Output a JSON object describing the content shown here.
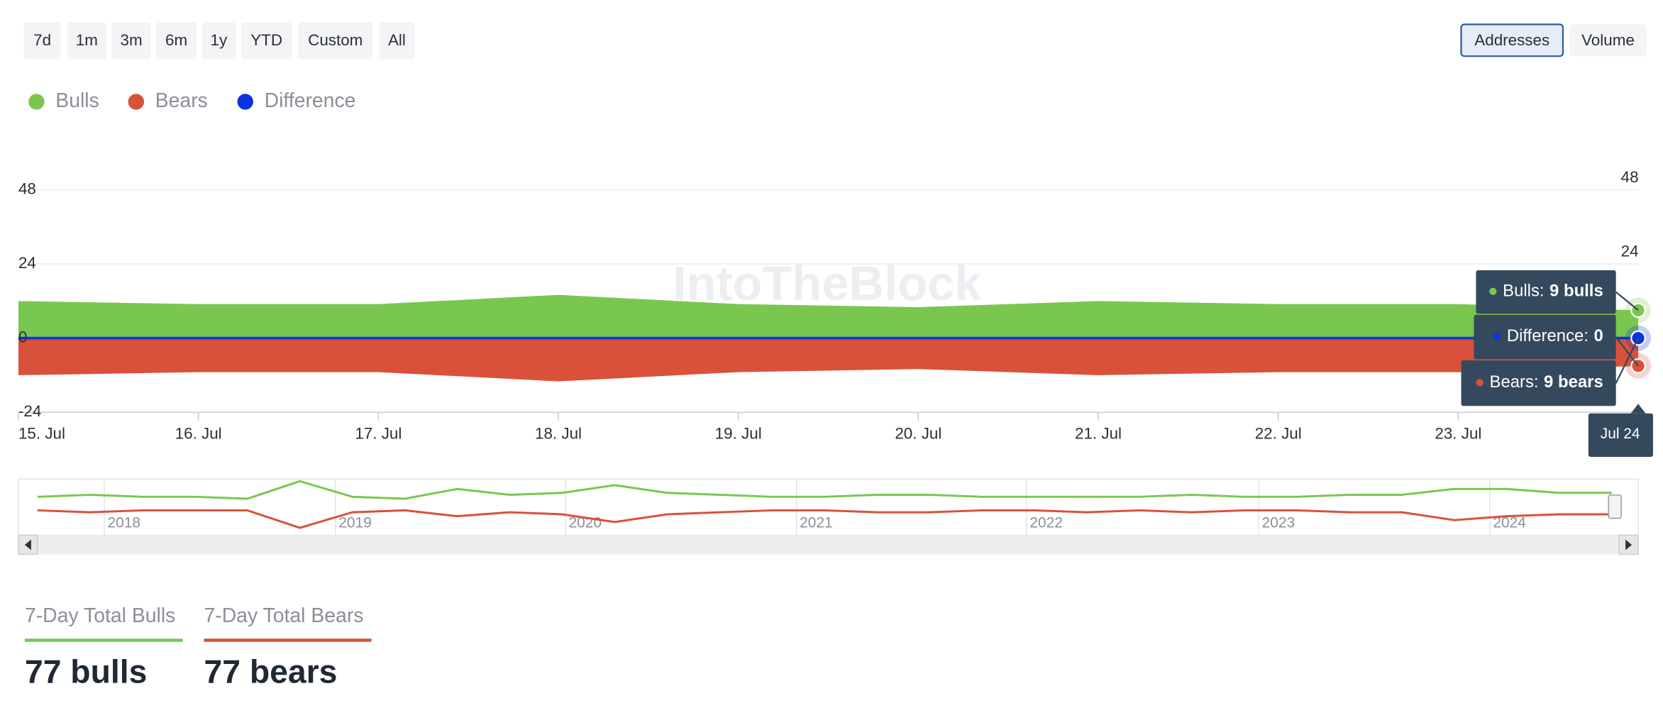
{
  "range_buttons": [
    "7d",
    "1m",
    "3m",
    "6m",
    "1y",
    "YTD",
    "Custom",
    "All"
  ],
  "view_buttons": [
    "Addresses",
    "Volume"
  ],
  "chart_data": {
    "type": "area",
    "watermark": "IntoTheBlock",
    "categories": [
      "15. Jul",
      "16. Jul",
      "17. Jul",
      "18. Jul",
      "19. Jul",
      "20. Jul",
      "21. Jul",
      "22. Jul",
      "23. Jul",
      null
    ],
    "series": [
      {
        "name": "Bulls",
        "color": "#7ac74f",
        "values": [
          12,
          11,
          11,
          14,
          11,
          10,
          12,
          11,
          11,
          9
        ]
      },
      {
        "name": "Bears",
        "color": "#d9513a",
        "values": [
          -12,
          -11,
          -11,
          -14,
          -11,
          -10,
          -12,
          -11,
          -11,
          -9
        ]
      },
      {
        "name": "Difference",
        "color": "#0b33e0",
        "values": [
          0,
          0,
          0,
          0,
          0,
          0,
          0,
          0,
          0,
          0
        ]
      }
    ],
    "ylim": [
      -24,
      48
    ],
    "yticks": [
      -24,
      0,
      24,
      48
    ],
    "grid": true,
    "tooltip": {
      "date": "Jul 24",
      "items": [
        {
          "label": "Bulls:",
          "value": "9 bulls"
        },
        {
          "label": "Difference:",
          "value": "0"
        },
        {
          "label": "Bears:",
          "value": "9 bears"
        }
      ]
    }
  },
  "navigator": {
    "years": [
      "2018",
      "2019",
      "2020",
      "2021",
      "2022",
      "2023",
      "2024"
    ],
    "series": [
      {
        "values": [
          4,
          5,
          4,
          4,
          3,
          12,
          4,
          3,
          8,
          5,
          6,
          10,
          6,
          5,
          4,
          4,
          5,
          5,
          4,
          4,
          4,
          4,
          5,
          4,
          4,
          5,
          5,
          8,
          8,
          6,
          6
        ]
      },
      {
        "values": [
          -3,
          -4,
          -3,
          -3,
          -3,
          -12,
          -4,
          -3,
          -6,
          -4,
          -5,
          -9,
          -5,
          -4,
          -3,
          -3,
          -4,
          -4,
          -3,
          -3,
          -4,
          -3,
          -4,
          -3,
          -3,
          -4,
          -4,
          -8,
          -6,
          -5,
          -5
        ]
      }
    ]
  },
  "stats": [
    {
      "label": "7-Day Total Bulls",
      "value": "77 bulls"
    },
    {
      "label": "7-Day Total Bears",
      "value": "77 bears"
    }
  ]
}
